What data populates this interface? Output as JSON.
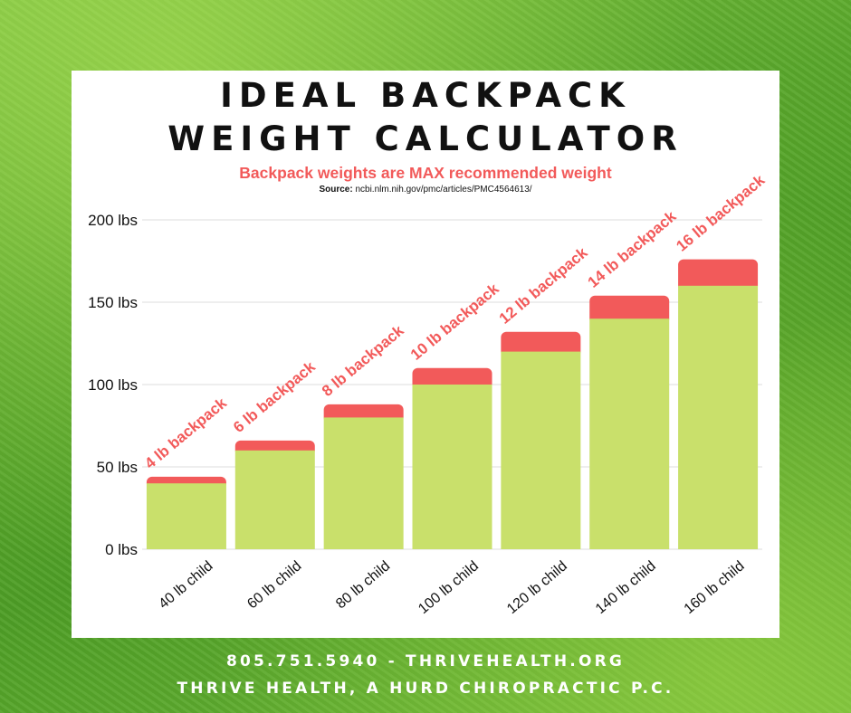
{
  "header": {
    "title_line1": "IDEAL BACKPACK",
    "title_line2": "WEIGHT CALCULATOR",
    "subtitle": "Backpack weights are MAX recommended weight",
    "source_label": "Source:",
    "source_url": "ncbi.nlm.nih.gov/pmc/articles/PMC4564613/"
  },
  "footer": {
    "line1": "805.751.5940 - THRIVEHEALTH.ORG",
    "line2": "THRIVE HEALTH, A HURD CHIROPRACTIC P.C."
  },
  "colors": {
    "child_bar": "#c9e06b",
    "backpack_bar": "#f25a5a",
    "grid": "#dddddd",
    "text": "#111111"
  },
  "chart_data": {
    "type": "bar",
    "stacked": true,
    "categories": [
      "40 lb child",
      "60 lb child",
      "80 lb child",
      "100 lb child",
      "120 lb child",
      "140 lb child",
      "160 lb child"
    ],
    "series": [
      {
        "values": [
          40,
          60,
          80,
          100,
          120,
          140,
          160
        ],
        "color": "#c9e06b"
      },
      {
        "values": [
          4,
          6,
          8,
          10,
          12,
          14,
          16
        ],
        "color": "#f25a5a"
      }
    ],
    "data_labels": [
      "4 lb backpack",
      "6 lb backpack",
      "8 lb backpack",
      "10 lb backpack",
      "12 lb backpack",
      "14 lb backpack",
      "16 lb backpack"
    ],
    "y_ticks": [
      "0 lbs",
      "50 lbs",
      "100 lbs",
      "150 lbs",
      "200 lbs"
    ],
    "y_tick_values": [
      0,
      50,
      100,
      150,
      200
    ],
    "ylim": [
      0,
      200
    ],
    "grid": true,
    "legend": "none"
  }
}
